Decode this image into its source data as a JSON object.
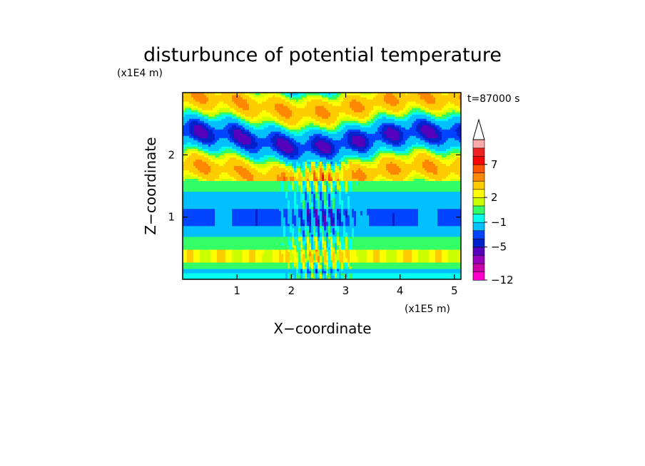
{
  "chart_data": {
    "type": "heatmap",
    "title": "disturbunce of potential temperature",
    "xlabel": "X−coordinate",
    "ylabel": "Z−coordinate",
    "x_unit": "(x1E5 m)",
    "y_unit": "(x1E4 m)",
    "annotation": "t=87000 s",
    "xlim": [
      0,
      5.12
    ],
    "ylim": [
      0,
      3.0
    ],
    "x_ticks": [
      1,
      2,
      3,
      4,
      5
    ],
    "x_tick_labels": [
      "1",
      "2",
      "3",
      "4",
      "5"
    ],
    "y_ticks": [
      1,
      2
    ],
    "y_tick_labels": [
      "1",
      "2"
    ],
    "colorbar": {
      "levels_bottom_to_top": [
        -12,
        -11,
        -9,
        -7,
        -5,
        -4,
        -3,
        -1,
        0,
        1,
        2,
        3,
        5,
        6,
        7,
        8,
        9
      ],
      "colors_bottom_to_top": [
        "#ff00cc",
        "#cc00aa",
        "#9900bb",
        "#5500bb",
        "#0022cc",
        "#0044ff",
        "#00c0ff",
        "#00ffee",
        "#33ff66",
        "#ccff00",
        "#ffff00",
        "#ffcc00",
        "#ff8800",
        "#ff5500",
        "#ff0000",
        "#ee2222",
        "#ffaaaa"
      ],
      "labels": [
        "7",
        "2",
        "−1",
        "−5",
        "−12"
      ],
      "label_levels": [
        7,
        2,
        -1,
        -5,
        -12
      ],
      "extend": "max"
    },
    "grid": false,
    "legend": "right"
  }
}
